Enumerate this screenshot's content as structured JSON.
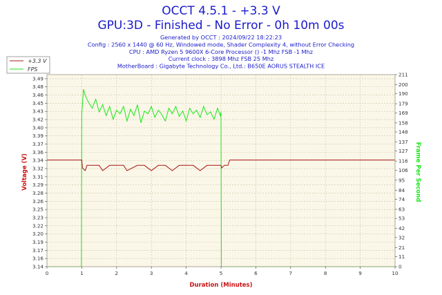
{
  "header": {
    "title": "OCCT 4.5.1 - +3.3 V",
    "subtitle": "GPU:3D - Finished - No Error - 0h 10m 00s",
    "info_lines": [
      "Generated by OCCT : 2024/09/22 18:22:23",
      "Config : 2560 x 1440 @ 60 Hz, Windowed mode, Shader Complexity 4, without Error Checking",
      "CPU : AMD Ryzen 5 9600X 6-Core Processor () -1 Mhz FSB -1 Mhz",
      "Current clock : 3898 Mhz FSB 25 Mhz",
      "MotherBoard : Gigabyte Technology Co., Ltd.: B650E AORUS STEALTH ICE"
    ]
  },
  "colors": {
    "voltage": "#a81414",
    "fps": "#19e619",
    "plot_bg": "#fbf7e8",
    "grid": "#c9c0a0",
    "ylabel_left": "#c81414",
    "ylabel_right": "#19e619",
    "xlabel": "#c81414",
    "title": "#1a1acb"
  },
  "chart_data": {
    "type": "line",
    "xlabel": "Duration (Minutes)",
    "ylabel_left": "Voltage (V)",
    "ylabel_right": "Frame Per Second",
    "xlim": [
      0,
      10
    ],
    "ylim_left": [
      3.14,
      3.5
    ],
    "ylim_right": [
      0,
      211
    ],
    "x_ticks": [
      "0",
      "1",
      "2",
      "3",
      "4",
      "5",
      "6",
      "7",
      "8",
      "9",
      "10"
    ],
    "y_left_ticks": [
      "3.14",
      "3.16",
      "3.17",
      "3.19",
      "3.20",
      "3.22",
      "3.23",
      "3.25",
      "3.26",
      "3.28",
      "3.29",
      "3.31",
      "3.32",
      "3.34",
      "3.36",
      "3.37",
      "3.39",
      "3.40",
      "3.42",
      "3.43",
      "3.45",
      "3.46",
      "3.48",
      "3.49"
    ],
    "y_right_ticks": [
      "0",
      "11",
      "21",
      "32",
      "42",
      "53",
      "63",
      "74",
      "84",
      "95",
      "106",
      "116",
      "127",
      "137",
      "148",
      "158",
      "169",
      "179",
      "190",
      "200",
      "211"
    ],
    "grid": true,
    "legend_position": "top-left",
    "series": [
      {
        "name": "+3.3 V",
        "axis": "left",
        "x": [
          0,
          1.0,
          1.02,
          1.1,
          1.15,
          1.3,
          1.5,
          1.6,
          1.8,
          2.0,
          2.2,
          2.3,
          2.6,
          2.8,
          3.0,
          3.2,
          3.4,
          3.6,
          3.8,
          4.0,
          4.2,
          4.4,
          4.6,
          4.8,
          5.0,
          5.02,
          5.1,
          5.2,
          5.25,
          6.0,
          7.0,
          8.0,
          9.0,
          10.0
        ],
        "y": [
          3.34,
          3.34,
          3.325,
          3.32,
          3.33,
          3.33,
          3.33,
          3.32,
          3.33,
          3.33,
          3.33,
          3.32,
          3.33,
          3.33,
          3.32,
          3.33,
          3.33,
          3.32,
          3.33,
          3.33,
          3.33,
          3.32,
          3.33,
          3.33,
          3.33,
          3.325,
          3.33,
          3.33,
          3.34,
          3.34,
          3.34,
          3.34,
          3.34,
          3.34
        ]
      },
      {
        "name": "FPS",
        "axis": "right",
        "x": [
          0,
          0.99,
          1.0,
          1.05,
          1.1,
          1.2,
          1.3,
          1.4,
          1.5,
          1.6,
          1.7,
          1.8,
          1.9,
          2.0,
          2.1,
          2.2,
          2.3,
          2.4,
          2.5,
          2.6,
          2.7,
          2.8,
          2.9,
          3.0,
          3.1,
          3.2,
          3.3,
          3.4,
          3.5,
          3.6,
          3.7,
          3.8,
          3.9,
          4.0,
          4.1,
          4.2,
          4.3,
          4.4,
          4.5,
          4.6,
          4.7,
          4.8,
          4.9,
          4.98,
          5.0,
          5.01,
          10.0
        ],
        "y": [
          0,
          0,
          168,
          195,
          188,
          180,
          174,
          184,
          170,
          178,
          166,
          176,
          162,
          172,
          168,
          176,
          160,
          173,
          166,
          178,
          158,
          171,
          168,
          176,
          164,
          172,
          167,
          160,
          174,
          168,
          176,
          165,
          171,
          160,
          174,
          168,
          172,
          164,
          176,
          167,
          170,
          162,
          174,
          166,
          170,
          0,
          0
        ]
      }
    ]
  },
  "legend": {
    "items": [
      {
        "label": "+3.3 V"
      },
      {
        "label": "FPS"
      }
    ]
  }
}
